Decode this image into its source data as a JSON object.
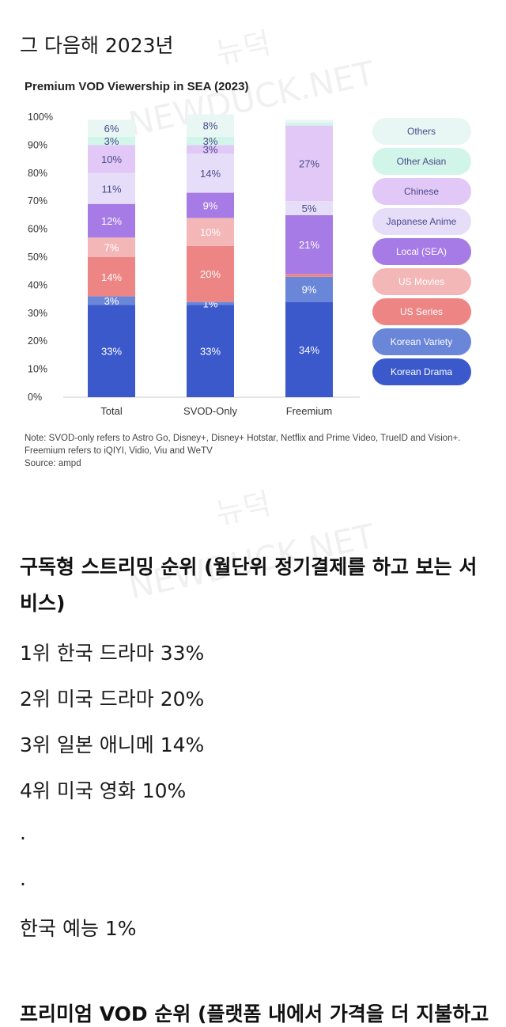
{
  "page": {
    "heading": "그 다음해 2023년",
    "watermark_korean": "뉴덕",
    "watermark_english": "NEWDUCK.NET"
  },
  "chart_data": {
    "type": "bar",
    "stacked": true,
    "title": "Premium VOD Viewership in SEA (2023)",
    "categories": [
      "Total",
      "SVOD-Only",
      "Freemium"
    ],
    "ylim": [
      0,
      100
    ],
    "yticks": [
      "0%",
      "10%",
      "20%",
      "30%",
      "40%",
      "50%",
      "60%",
      "70%",
      "80%",
      "90%",
      "100%"
    ],
    "series": [
      {
        "name": "Korean Drama",
        "color": "#3c59cc",
        "label_color": "#ffffff",
        "values": [
          33,
          33,
          34
        ],
        "labels": [
          "33%",
          "33%",
          "34%"
        ]
      },
      {
        "name": "Korean Variety",
        "color": "#6a86d8",
        "label_color": "#ffffff",
        "values": [
          3,
          1,
          9
        ],
        "labels": [
          "3%",
          "1%",
          "9%"
        ]
      },
      {
        "name": "US Series",
        "color": "#ee8585",
        "label_color": "#ffffff",
        "values": [
          14,
          20,
          1
        ],
        "labels": [
          "14%",
          "20%",
          ""
        ]
      },
      {
        "name": "US Movies",
        "color": "#f4b7b7",
        "label_color": "#ffffff",
        "values": [
          7,
          10,
          0
        ],
        "labels": [
          "7%",
          "10%",
          ""
        ]
      },
      {
        "name": "Local (SEA)",
        "color": "#a77be6",
        "label_color": "#ffffff",
        "values": [
          12,
          9,
          21
        ],
        "labels": [
          "12%",
          "9%",
          "21%"
        ]
      },
      {
        "name": "Japanese Anime",
        "color": "#e6def9",
        "label_color": "#4a4a8a",
        "values": [
          11,
          14,
          5
        ],
        "labels": [
          "11%",
          "14%",
          "5%"
        ]
      },
      {
        "name": "Chinese",
        "color": "#e2c8f6",
        "label_color": "#4a4a8a",
        "values": [
          10,
          3,
          27
        ],
        "labels": [
          "10%",
          "3%",
          "27%"
        ]
      },
      {
        "name": "Other Asian",
        "color": "#d2f5ea",
        "label_color": "#4a4a8a",
        "values": [
          3,
          3,
          1
        ],
        "labels": [
          "3%",
          "3%",
          ""
        ]
      },
      {
        "name": "Others",
        "color": "#e8f6f4",
        "label_color": "#4a4a8a",
        "values": [
          6,
          8,
          1
        ],
        "labels": [
          "6%",
          "8%",
          ""
        ]
      }
    ],
    "legend": {
      "placement": "right",
      "order": [
        "Others",
        "Other Asian",
        "Chinese",
        "Japanese Anime",
        "Local (SEA)",
        "US Movies",
        "US Series",
        "Korean Variety",
        "Korean Drama"
      ]
    },
    "grid": false
  },
  "note": {
    "line1": "Note: SVOD-only refers to Astro Go, Disney+, Disney+ Hotstar, Netflix and Prime Video, TrueID and Vision+.",
    "line2": "Freemium refers to iQIYI, Vidio, Viu and WeTV",
    "line3": "Source: ampd"
  },
  "ranking": {
    "title": "구독형 스트리밍 순위 (월단위 정기결제를 하고 보는 서비스)",
    "items": [
      "1위 한국 드라마 33%",
      "2위 미국 드라마 20%",
      "3위 일본 애니메 14%",
      "4위 미국 영화 10%",
      ".",
      ".",
      "한국 예능 1%"
    ],
    "next_title": "프리미엄 VOD 순위 (플랫폼 내에서 가격을 더 지불하고"
  }
}
